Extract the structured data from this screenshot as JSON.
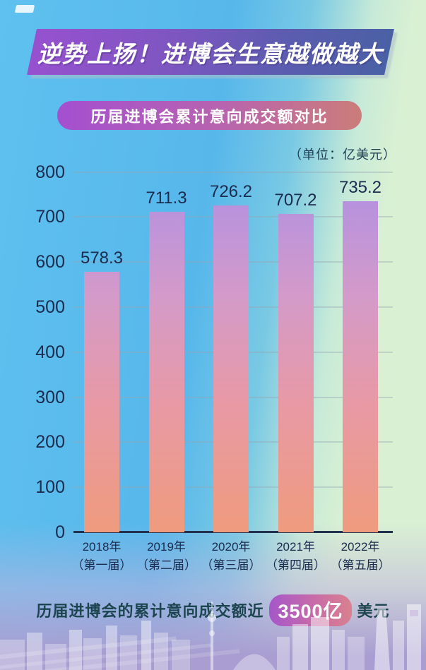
{
  "banner": {
    "title": "逆势上扬！进博会生意越做越大"
  },
  "subtitle": {
    "label": "历届进博会累计意向成交额对比"
  },
  "unit_label": "（单位：亿美元）",
  "chart_data": {
    "type": "bar",
    "title": "历届进博会累计意向成交额对比",
    "unit": "亿美元",
    "categories": [
      {
        "year": "2018年",
        "session": "（第一届）"
      },
      {
        "year": "2019年",
        "session": "（第二届）"
      },
      {
        "year": "2020年",
        "session": "（第三届）"
      },
      {
        "year": "2021年",
        "session": "（第四届）"
      },
      {
        "year": "2022年",
        "session": "（第五届）"
      }
    ],
    "values": [
      578.3,
      711.3,
      726.2,
      707.2,
      735.2
    ],
    "value_labels": [
      "578.3",
      "711.3",
      "726.2",
      "707.2",
      "735.2"
    ],
    "ylim": [
      0,
      800
    ],
    "yticks": [
      0,
      100,
      200,
      300,
      400,
      500,
      600,
      700,
      800
    ],
    "grid": true,
    "legend": "none",
    "bar_gradient": [
      "#b792de",
      "#d39aca",
      "#e899a4",
      "#ef9b7e"
    ]
  },
  "footer": {
    "prefix": "历届进博会的累计意向成交额近",
    "highlight": "3500亿",
    "suffix": "美元"
  },
  "colors": {
    "banner_gradient_left": "#9751cf",
    "banner_gradient_right": "#4a60a5",
    "subtitle_gradient_left": "#a44fd0",
    "subtitle_gradient_right": "#cb7d79",
    "footer_pill_left": "#a557c9",
    "footer_pill_right": "#d9808f",
    "axis_text": "#1b2c4e",
    "unit_text": "#1d3e52",
    "footer_text": "#1c4550",
    "bg_blue": "#5ec1ef",
    "bg_green": "#d9f0d3",
    "bg_lavender": "#a99dd1"
  }
}
